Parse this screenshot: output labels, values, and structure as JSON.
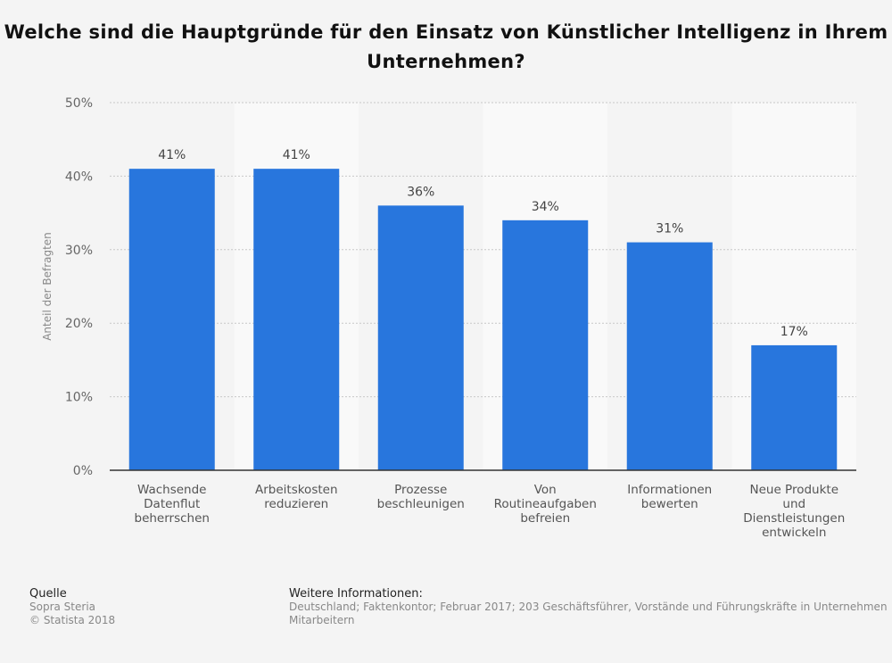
{
  "chart_data": {
    "type": "bar",
    "title": "Welche sind die Hauptgründe für den Einsatz von Künstlicher Intelligenz in Ihrem Unternehmen?",
    "ylabel": "Anteil der Befragten",
    "xlabel": "",
    "ylim": [
      0,
      50
    ],
    "yticks": [
      "0%",
      "10%",
      "20%",
      "30%",
      "40%",
      "50%"
    ],
    "grid": true,
    "categories": [
      [
        "Wachsende",
        "Datenflut",
        "beherrschen"
      ],
      [
        "Arbeitskosten",
        "reduzieren"
      ],
      [
        "Prozesse",
        "beschleunigen"
      ],
      [
        "Von",
        "Routineaufgaben",
        "befreien"
      ],
      [
        "Informationen",
        "bewerten"
      ],
      [
        "Neue Produkte",
        "und",
        "Dienstleistungen",
        "entwickeln"
      ]
    ],
    "values": [
      41,
      41,
      36,
      34,
      31,
      17
    ],
    "data_labels": [
      "41%",
      "41%",
      "36%",
      "34%",
      "31%",
      "17%"
    ],
    "bar_color": "#2876dd"
  },
  "footer": {
    "source_heading": "Quelle",
    "source": "Sopra Steria",
    "copyright": "© Statista 2018",
    "info_heading": "Weitere Informationen:",
    "info_line1": "Deutschland; Faktenkontor; Februar 2017; 203 Geschäftsführer, Vorstände und Führungskräfte in Unternehmen",
    "info_line2": "Mitarbeitern"
  }
}
